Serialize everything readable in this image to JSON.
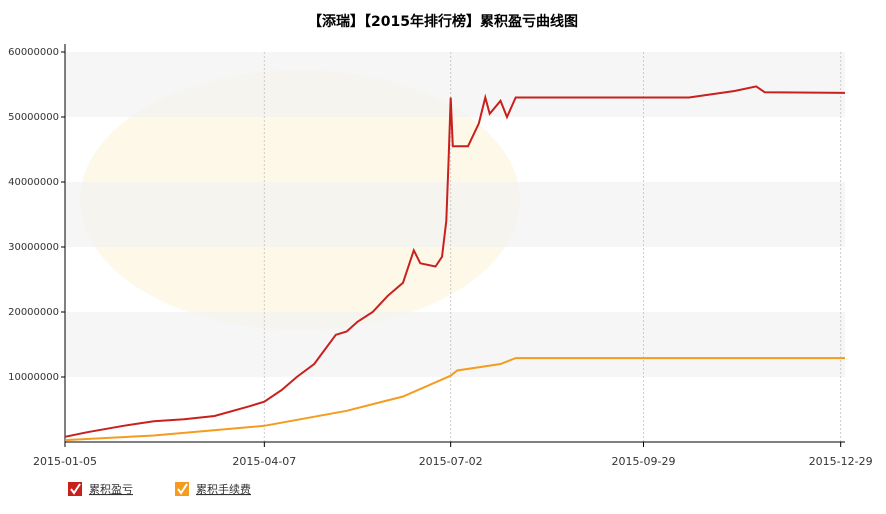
{
  "chart_data": {
    "type": "line",
    "title": "【添瑞】【2015年排行榜】累积盈亏曲线图",
    "grid": true,
    "xlim": [
      "2015-01-05",
      "2015-12-31"
    ],
    "xticks": [
      "2015-01-05",
      "2015-04-07",
      "2015-07-02",
      "2015-09-29",
      "2015-12-29"
    ],
    "ylim": [
      0,
      60000000
    ],
    "yticks": [
      10000000,
      20000000,
      30000000,
      40000000,
      50000000,
      60000000
    ],
    "series": [
      {
        "name": "累积盈亏",
        "color": "#c8201c",
        "x": [
          "2015-01-05",
          "2015-01-15",
          "2015-02-01",
          "2015-02-15",
          "2015-03-01",
          "2015-03-15",
          "2015-03-31",
          "2015-04-07",
          "2015-04-15",
          "2015-04-22",
          "2015-04-30",
          "2015-05-10",
          "2015-05-15",
          "2015-05-20",
          "2015-05-27",
          "2015-06-03",
          "2015-06-10",
          "2015-06-15",
          "2015-06-18",
          "2015-06-25",
          "2015-06-28",
          "2015-06-30",
          "2015-07-01",
          "2015-07-02",
          "2015-07-03",
          "2015-07-10",
          "2015-07-15",
          "2015-07-18",
          "2015-07-20",
          "2015-07-25",
          "2015-07-28",
          "2015-08-01",
          "2015-10-20",
          "2015-11-10",
          "2015-11-20",
          "2015-11-24",
          "2015-12-31"
        ],
        "values": [
          800000,
          1500000,
          2500000,
          3200000,
          3500000,
          4000000,
          5500000,
          6200000,
          8000000,
          10000000,
          12000000,
          16500000,
          17000000,
          18500000,
          20000000,
          22500000,
          24500000,
          29500000,
          27500000,
          27000000,
          28500000,
          34000000,
          43000000,
          53000000,
          45500000,
          45500000,
          49000000,
          53000000,
          50500000,
          52500000,
          50000000,
          53000000,
          53000000,
          54000000,
          54700000,
          53800000,
          53700000
        ]
      },
      {
        "name": "累积手续费",
        "color": "#f39c1e",
        "x": [
          "2015-01-05",
          "2015-02-15",
          "2015-04-07",
          "2015-05-15",
          "2015-06-10",
          "2015-07-02",
          "2015-07-05",
          "2015-07-25",
          "2015-08-01",
          "2015-12-31"
        ],
        "values": [
          300000,
          1000000,
          2500000,
          4800000,
          7000000,
          10200000,
          11000000,
          12000000,
          12900000,
          12900000
        ]
      }
    ]
  }
}
